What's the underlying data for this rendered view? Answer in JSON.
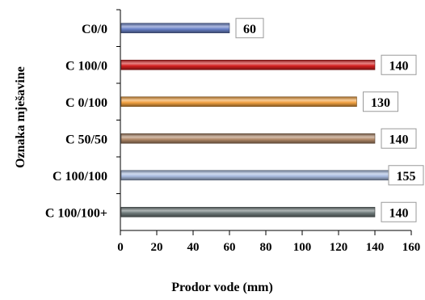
{
  "chart_data": {
    "type": "bar",
    "orientation": "horizontal",
    "xlabel": "Prodor vode (mm)",
    "ylabel": "Oznaka mješavine",
    "xlim": [
      0,
      160
    ],
    "xticks": [
      0,
      20,
      40,
      60,
      80,
      100,
      120,
      140,
      160
    ],
    "grid": false,
    "data_labels": true,
    "categories": [
      "C0/0",
      "C 100/0",
      "C 0/100",
      "C 50/50",
      "C 100/100",
      "C 100/100+"
    ],
    "values": [
      60,
      140,
      130,
      140,
      155,
      140
    ],
    "colors": [
      "#6a82c8",
      "#d42020",
      "#f0a040",
      "#b08868",
      "#a8bce0",
      "#6e7a7a"
    ]
  }
}
